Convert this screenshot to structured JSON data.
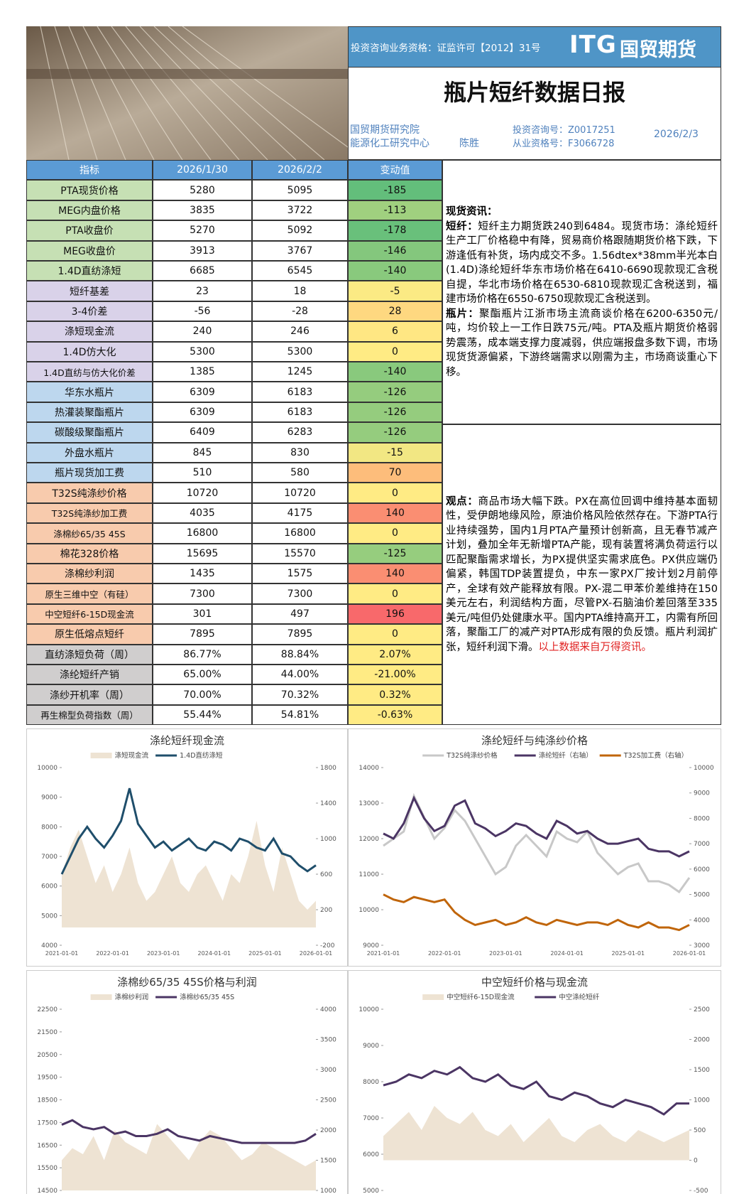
{
  "header": {
    "qualification": "投资咨询业务资格：证监许可【2012】31号",
    "logo_mark": "ITG",
    "logo_name": "国贸期货",
    "title": "瓶片短纤数据日报",
    "institute": "国贸期货研究院",
    "center": "能源化工研究中心",
    "analyst": "陈胜",
    "consult_no": "投资咨询号：Z0017251",
    "license_no": "从业资格号：F3066728",
    "date": "2026/2/3"
  },
  "table": {
    "columns": [
      "指标",
      "2026/1/30",
      "2026/2/2",
      "变动值"
    ],
    "rows": [
      [
        "PTA现货价格",
        "5280",
        "5095",
        "-185"
      ],
      [
        "MEG内盘价格",
        "3835",
        "3722",
        "-113"
      ],
      [
        "PTA收盘价",
        "5270",
        "5092",
        "-178"
      ],
      [
        "MEG收盘价",
        "3913",
        "3767",
        "-146"
      ],
      [
        "1.4D直纺涤短",
        "6685",
        "6545",
        "-140"
      ],
      [
        "短纤基差",
        "23",
        "18",
        "-5"
      ],
      [
        "3-4价差",
        "-56",
        "-28",
        "28"
      ],
      [
        "涤短现金流",
        "240",
        "246",
        "6"
      ],
      [
        "1.4D仿大化",
        "5300",
        "5300",
        "0"
      ],
      [
        "1.4D直纺与仿大化价差",
        "1385",
        "1245",
        "-140"
      ],
      [
        "华东水瓶片",
        "6309",
        "6183",
        "-126"
      ],
      [
        "热灌装聚酯瓶片",
        "6309",
        "6183",
        "-126"
      ],
      [
        "碳酸级聚酯瓶片",
        "6409",
        "6283",
        "-126"
      ],
      [
        "外盘水瓶片",
        "845",
        "830",
        "-15"
      ],
      [
        "瓶片现货加工费",
        "510",
        "580",
        "70"
      ],
      [
        "T32S纯涤纱价格",
        "10720",
        "10720",
        "0"
      ],
      [
        "T32S纯涤纱加工费",
        "4035",
        "4175",
        "140"
      ],
      [
        "涤棉纱65/35 45S",
        "16800",
        "16800",
        "0"
      ],
      [
        "棉花328价格",
        "15695",
        "15570",
        "-125"
      ],
      [
        "涤棉纱利润",
        "1435",
        "1575",
        "140"
      ],
      [
        "原生三维中空（有硅）",
        "7300",
        "7300",
        "0"
      ],
      [
        "中空短纤6-15D现金流",
        "301",
        "497",
        "196"
      ],
      [
        "原生低熔点短纤",
        "7895",
        "7895",
        "0"
      ],
      [
        "直纺涤短负荷（周）",
        "86.77%",
        "88.84%",
        "2.07%"
      ],
      [
        "涤纶短纤产销",
        "65.00%",
        "44.00%",
        "-21.00%"
      ],
      [
        "涤纱开机率（周）",
        "70.00%",
        "70.32%",
        "0.32%"
      ],
      [
        "再生棉型负荷指数（周）",
        "55.44%",
        "54.81%",
        "-0.63%"
      ]
    ],
    "group_colors": [
      "#c6e0b4",
      "#c6e0b4",
      "#c6e0b4",
      "#c6e0b4",
      "#c6e0b4",
      "#d9d2e9",
      "#d9d2e9",
      "#d9d2e9",
      "#d9d2e9",
      "#d9d2e9",
      "#bdd7ee",
      "#bdd7ee",
      "#bdd7ee",
      "#bdd7ee",
      "#bdd7ee",
      "#f8cbad",
      "#f8cbad",
      "#f8cbad",
      "#f8cbad",
      "#f8cbad",
      "#f8cbad",
      "#f8cbad",
      "#f8cbad",
      "#d0cece",
      "#d0cece",
      "#d0cece",
      "#d0cece"
    ]
  },
  "commentary": {
    "spot_heading": "现货资讯：",
    "items": [
      {
        "label": "短纤：",
        "text": "短纤主力期货跌240到6484。现货市场：涤纶短纤生产工厂价格稳中有降，贸易商价格跟随期货价格下跌，下游逢低有补货，场内成交不多。1.56dtex*38mm半光本白(1.4D)涤纶短纤华东市场价格在6410-6690现款现汇含税自提，华北市场价格在6530-6810现款现汇含税送到，福建市场价格在6550-6750现款现汇含税送到。"
      },
      {
        "label": "瓶片：",
        "text": "聚酯瓶片江浙市场主流商谈价格在6200-6350元/吨，均价较上一工作日跌75元/吨。PTA及瓶片期货价格弱势震荡，成本端支撑力度减弱，供应端报盘多数下调，市场现货货源偏紧，下游终端需求以刚需为主，市场商谈重心下移。"
      }
    ],
    "view_label": "观点：",
    "view_text": "商品市场大幅下跌。PX在高位回调中维持基本面韧性，受伊朗地缘风险，原油价格风险依然存在。下游PTA行业持续强势，国内1月PTA产量预计创新高，且无春节减产计划，叠加全年无新增PTA产能，现有装置将满负荷运行以匹配聚酯需求增长，为PX提供坚实需求底色。PX供应端仍偏紧，韩国TDP装置提负，中东一家PX厂按计划2月前停产，全球有效产能释放有限。PX-混二甲苯价差维持在150美元左右，利润结构方面，尽管PX-石脑油价差回落至335美元/吨但仍处健康水平。国内PTA维持高开工，内需有所回落，聚酯工厂的减产对PTA形成有限的负反馈。瓶片利润扩张，短纤利润下滑。",
    "source_note": "以上数据来自万得资讯。"
  },
  "chart_data": [
    {
      "type": "line",
      "title": "涤纶短纤现金流",
      "ylim": [
        4000,
        10000
      ],
      "yticks": [
        4000,
        5000,
        6000,
        7000,
        8000,
        9000,
        10000
      ],
      "y2lim": [
        -200,
        1800
      ],
      "y2ticks": [
        -200,
        200,
        600,
        1000,
        1400,
        1800
      ],
      "categories": [
        "2021-01-01",
        null,
        null,
        null,
        null,
        null,
        "2022-01-01",
        null,
        null,
        null,
        null,
        null,
        "2023-01-01",
        null,
        null,
        null,
        null,
        null,
        "2024-01-01",
        null,
        null,
        null,
        null,
        null,
        "2025-01-01",
        null,
        null,
        null,
        null,
        null,
        "2026-01-01"
      ],
      "series": [
        {
          "name": "涤短现金流",
          "type": "area",
          "axis": "y2",
          "color": "#eee3d3",
          "values": [
            600,
            900,
            1100,
            800,
            500,
            700,
            400,
            600,
            900,
            500,
            300,
            400,
            600,
            800,
            500,
            400,
            600,
            700,
            500,
            300,
            600,
            500,
            800,
            1200,
            700,
            400,
            900,
            600,
            300,
            200,
            300
          ]
        },
        {
          "name": "1.4D直纺涤短",
          "type": "line",
          "color": "#1f4e6b",
          "values": [
            6400,
            7000,
            7600,
            8000,
            7600,
            7300,
            7700,
            8200,
            9300,
            8100,
            7700,
            7300,
            7500,
            7200,
            7400,
            7600,
            7300,
            7200,
            7500,
            7400,
            7200,
            7600,
            7500,
            7300,
            7200,
            7600,
            7100,
            7000,
            6700,
            6500,
            6700
          ]
        }
      ]
    },
    {
      "type": "line",
      "title": "涤纶短纤与纯涤纱价格",
      "ylim": [
        9000,
        14000
      ],
      "yticks": [
        9000,
        10000,
        11000,
        12000,
        13000,
        14000
      ],
      "y2lim": [
        3000,
        10000
      ],
      "y2ticks": [
        3000,
        4000,
        5000,
        6000,
        7000,
        8000,
        9000,
        10000
      ],
      "categories": [
        "2021-01-01",
        null,
        null,
        null,
        null,
        null,
        "2022-01-01",
        null,
        null,
        null,
        null,
        null,
        "2023-01-01",
        null,
        null,
        null,
        null,
        null,
        "2024-01-01",
        null,
        null,
        null,
        null,
        null,
        "2025-01-01",
        null,
        null,
        null,
        null,
        null,
        "2026-01-01"
      ],
      "series": [
        {
          "name": "T32S纯涤纱价格",
          "type": "line",
          "color": "#c8c8c8",
          "values": [
            11800,
            12000,
            12200,
            13200,
            12600,
            12000,
            12300,
            12800,
            12500,
            12000,
            11500,
            11000,
            11200,
            11800,
            12100,
            11800,
            11500,
            12200,
            12000,
            11900,
            12200,
            11600,
            11300,
            11000,
            11200,
            11300,
            10800,
            10800,
            10700,
            10500,
            10900
          ]
        },
        {
          "name": "涤纶短纤（右轴）",
          "type": "line",
          "axis": "y2",
          "color": "#4b3564",
          "values": [
            7400,
            7200,
            7800,
            8800,
            8000,
            7500,
            7700,
            8500,
            8700,
            7800,
            7600,
            7300,
            7500,
            7800,
            7700,
            7400,
            7200,
            7900,
            7700,
            7400,
            7500,
            7200,
            7000,
            7000,
            7100,
            7200,
            6800,
            6700,
            6700,
            6500,
            6700
          ]
        },
        {
          "name": "T32S加工费（右轴）",
          "type": "line",
          "axis": "y2",
          "color": "#c0650a",
          "values": [
            5000,
            4800,
            4700,
            4900,
            4800,
            4700,
            4800,
            4300,
            4000,
            3800,
            3900,
            4000,
            3800,
            3900,
            4100,
            3900,
            3800,
            4000,
            3900,
            3800,
            3900,
            3900,
            3800,
            4000,
            3800,
            3700,
            3900,
            3700,
            3700,
            3600,
            3800
          ]
        }
      ]
    },
    {
      "type": "line",
      "title": "涤棉纱65/35 45S价格与利润",
      "ylim": [
        14500,
        22500
      ],
      "yticks": [
        14500,
        15500,
        16500,
        17500,
        18500,
        19500,
        20500,
        21500,
        22500
      ],
      "y2lim": [
        1000,
        4000
      ],
      "y2ticks": [
        1000,
        1500,
        2000,
        2500,
        3000,
        3500,
        4000
      ],
      "series": [
        {
          "name": "涤棉纱利润",
          "type": "area",
          "axis": "y2",
          "color": "#eee3d3",
          "values": [
            1500,
            1700,
            1600,
            1900,
            1500,
            2000,
            1800,
            1700,
            1600,
            2100,
            1900,
            1700,
            1500,
            1800,
            2000,
            1900,
            1700,
            1500,
            1600,
            1800,
            1700,
            1600,
            1500,
            1400,
            1500
          ]
        },
        {
          "name": "涤棉纱65/35 45S",
          "type": "line",
          "color": "#4b3564",
          "values": [
            17400,
            17600,
            17300,
            17200,
            17300,
            17000,
            17100,
            16900,
            16900,
            17000,
            17200,
            16900,
            16800,
            16700,
            16900,
            16800,
            16700,
            16600,
            16600,
            16600,
            16600,
            16600,
            16600,
            16700,
            17000
          ]
        }
      ]
    },
    {
      "type": "line",
      "title": "中空短纤价格与现金流",
      "ylim": [
        5000,
        10000
      ],
      "yticks": [
        5000,
        6000,
        7000,
        8000,
        9000,
        10000
      ],
      "y2lim": [
        -500,
        2500
      ],
      "y2ticks": [
        -500,
        0,
        500,
        1000,
        1500,
        2000,
        2500
      ],
      "series": [
        {
          "name": "中空短纤6-15D现金流",
          "type": "area",
          "axis": "y2",
          "color": "#eee3d3",
          "values": [
            400,
            600,
            800,
            500,
            900,
            700,
            600,
            800,
            500,
            400,
            600,
            300,
            500,
            700,
            400,
            300,
            500,
            600,
            400,
            300,
            500,
            400,
            300,
            400,
            500
          ]
        },
        {
          "name": "中空涤纶短纤",
          "type": "line",
          "color": "#4b3564",
          "values": [
            7900,
            8000,
            8200,
            8100,
            8300,
            8200,
            8400,
            8100,
            8000,
            8200,
            7900,
            7800,
            8000,
            7600,
            7500,
            7700,
            7600,
            7400,
            7300,
            7500,
            7400,
            7300,
            7100,
            7400,
            7400
          ]
        }
      ]
    }
  ]
}
